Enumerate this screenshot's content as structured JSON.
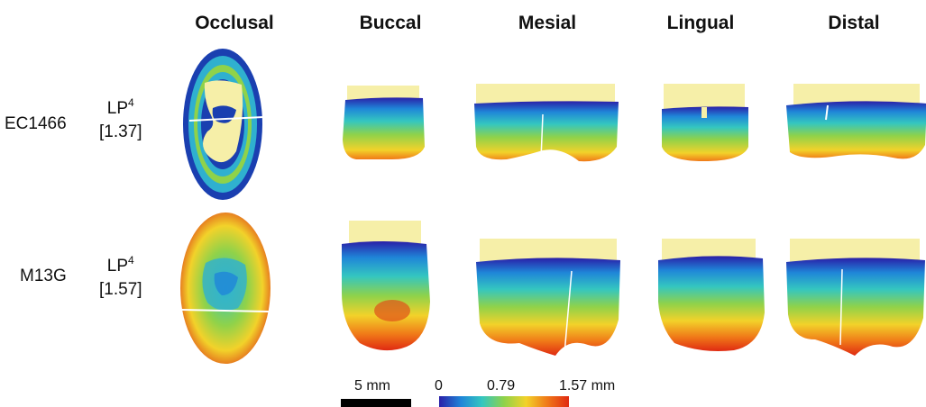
{
  "columns": [
    "Occlusal",
    "Buccal",
    "Mesial",
    "Lingual",
    "Distal"
  ],
  "specimens": [
    {
      "id": "EC1466",
      "tooth": "LP",
      "tooth_sup": "4",
      "value": "[1.37]"
    },
    {
      "id": "M13G",
      "tooth": "LP",
      "tooth_sup": "4",
      "value": "[1.57]"
    }
  ],
  "scale_bar": {
    "label": "5 mm"
  },
  "colorbar": {
    "min": "0",
    "mid": "0.79",
    "max": "1.57 mm",
    "colors": [
      "#2a1fa8",
      "#1f86d8",
      "#34c6c0",
      "#8fd24a",
      "#f2d22a",
      "#f07a18",
      "#e02a12"
    ]
  },
  "dentine_color": "#f6efa8"
}
